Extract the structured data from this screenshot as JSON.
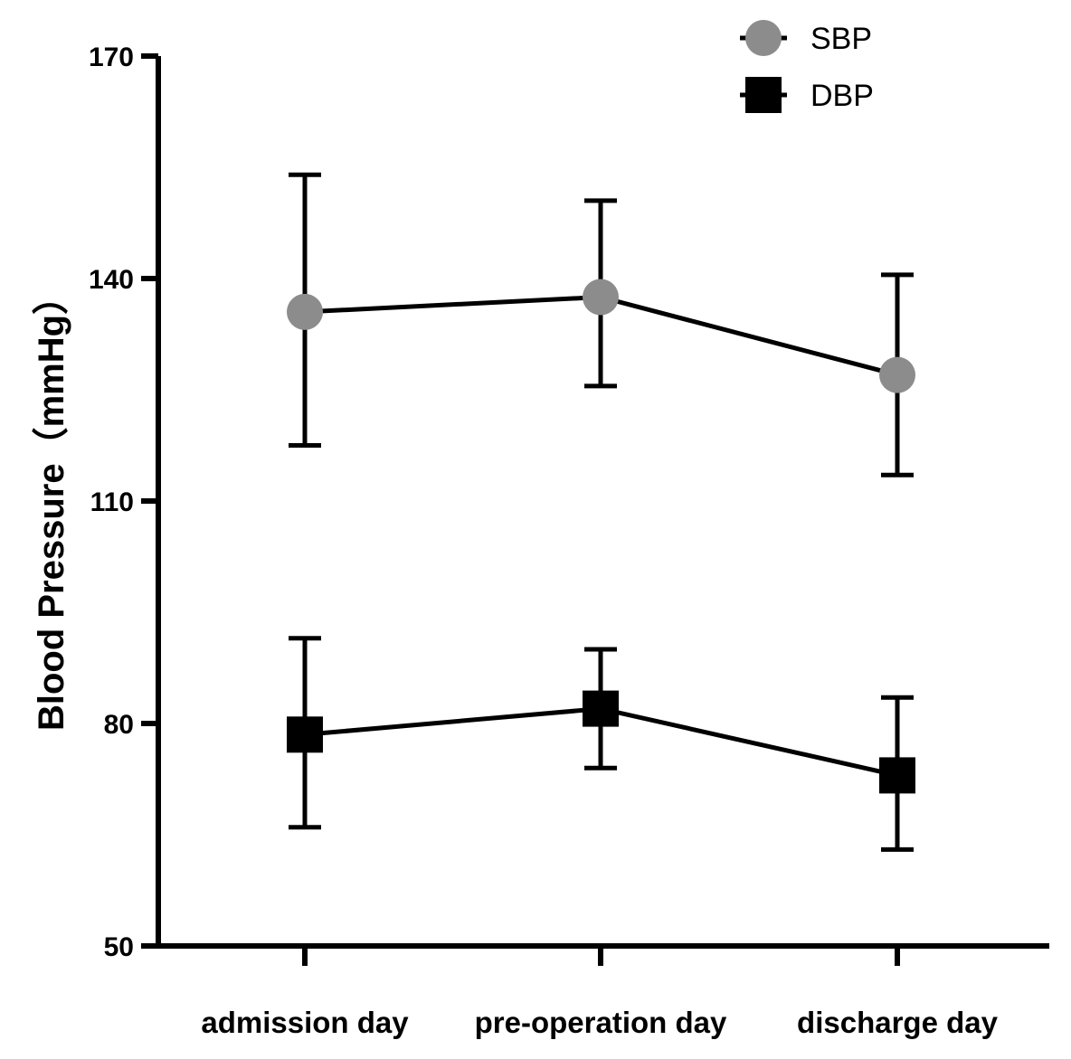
{
  "chart_data": {
    "type": "line",
    "title": "",
    "xlabel": "",
    "ylabel": "Blood Pressure（mmHg）",
    "ylim": [
      50,
      170
    ],
    "yticks": [
      50,
      80,
      110,
      140,
      170
    ],
    "categories": [
      "admission day",
      "pre-operation day",
      "discharge day"
    ],
    "legend_position": "top-right",
    "grid": false,
    "series": [
      {
        "name": "SBP",
        "marker": "circle",
        "color": "#8c8c8c",
        "values": [
          135.5,
          137.5,
          127
        ],
        "error_upper": [
          154,
          150.5,
          140.5
        ],
        "error_lower": [
          117.5,
          125.5,
          113.5
        ]
      },
      {
        "name": "DBP",
        "marker": "square",
        "color": "#000000",
        "values": [
          78.5,
          82,
          73
        ],
        "error_upper": [
          91.5,
          90,
          83.5
        ],
        "error_lower": [
          66,
          74,
          63
        ]
      }
    ]
  }
}
